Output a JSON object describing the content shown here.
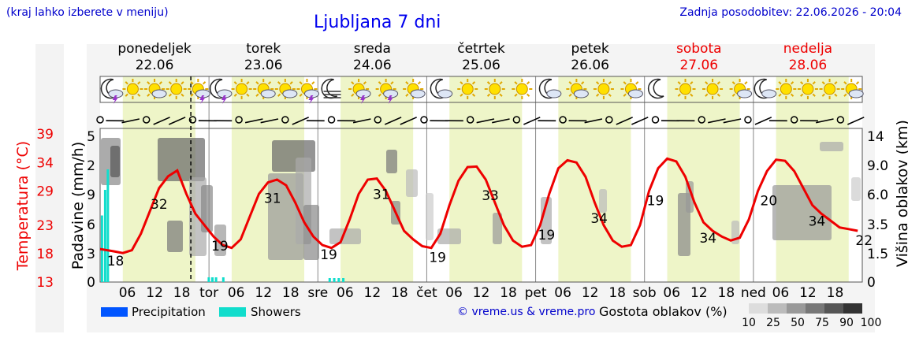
{
  "header": {
    "hint": "(kraj lahko izberete v meniju)",
    "title": "Ljubljana 7 dni",
    "updated": "Zadnja posodobitev: 22.06.2026 - 20:04"
  },
  "days": [
    {
      "name": "ponedeljek",
      "date": "22.06",
      "weekend": false
    },
    {
      "name": "torek",
      "date": "23.06",
      "weekend": false
    },
    {
      "name": "sreda",
      "date": "24.06",
      "weekend": false
    },
    {
      "name": "četrtek",
      "date": "25.06",
      "weekend": false
    },
    {
      "name": "petek",
      "date": "26.06",
      "weekend": false
    },
    {
      "name": "sobota",
      "date": "27.06",
      "weekend": true
    },
    {
      "name": "nedelja",
      "date": "28.06",
      "weekend": true
    }
  ],
  "weather_icons": [
    [
      "moon-thunder-icon",
      "sun-icon",
      "sun-cloud-icon",
      "sun-icon",
      "sun-thunder-icon"
    ],
    [
      "moon-thunder-icon",
      "sun-icon",
      "sun-cloud-icon",
      "sun-cloud-icon",
      "sun-thunder-icon"
    ],
    [
      "moon-fog-icon",
      "sun-thunder-icon",
      "sun-thunder-icon",
      "sun-cloud-icon"
    ],
    [
      "moon-cloud-icon",
      "sun-icon",
      "sun-icon",
      "sun-icon"
    ],
    [
      "moon-cloud-icon",
      "sun-cloud-icon",
      "sun-icon",
      "sun-cloud-icon"
    ],
    [
      "moon-icon",
      "sun-icon",
      "sun-icon",
      "sun-cloud-icon"
    ],
    [
      "moon-cloud-icon",
      "sun-icon",
      "sun-icon",
      "sun-icon",
      "sun-cloud-icon"
    ]
  ],
  "legend": {
    "precipitation": "Precipitation",
    "showers": "Showers",
    "credit": "© vreme.us & vreme.pro",
    "cloud_title": "Gostota oblakov (%)",
    "cloud_levels": [
      "10",
      "25",
      "50",
      "75",
      "90",
      "100"
    ]
  },
  "colors": {
    "temperature": "#ee0000",
    "precipitation": "#0055ff",
    "showers": "#11ddcc",
    "daylight": "#eef5c8",
    "weekend": "#ee0000"
  },
  "chart_data": {
    "type": "line",
    "title": "Ljubljana 7 dni",
    "ylabel_left": "Temperatura (°C)",
    "ylabel_precip": "Padavine (mm/h)",
    "ylabel_right": "Višina oblakov (km)",
    "x_tick_labels": [
      "06",
      "12",
      "18",
      "tor",
      "06",
      "12",
      "18",
      "sre",
      "06",
      "12",
      "18",
      "čet",
      "06",
      "12",
      "18",
      "pet",
      "06",
      "12",
      "18",
      "sob",
      "06",
      "12",
      "18",
      "ned",
      "06",
      "12",
      "18"
    ],
    "temp_ticks": [
      13,
      18,
      23,
      29,
      34,
      39
    ],
    "precip_ticks": [
      "0",
      "3",
      "6",
      "9",
      "2",
      "5"
    ],
    "cloud_height_ticks": [
      0,
      1.5,
      3.5,
      6.0,
      9.0,
      14
    ],
    "temp_range": [
      13,
      40
    ],
    "x_hours_range": [
      0,
      168
    ],
    "temperature_series": {
      "hours": [
        0,
        3,
        5,
        7,
        9,
        11,
        13,
        15,
        17,
        19,
        21,
        23,
        25,
        27,
        29,
        31,
        33,
        35,
        37,
        39,
        41,
        43,
        45,
        47,
        49,
        51,
        53,
        55,
        57,
        59,
        61,
        63,
        65,
        67,
        69,
        71,
        73,
        75,
        77,
        79,
        81,
        83,
        85,
        87,
        89,
        91,
        93,
        95,
        97,
        99,
        101,
        103,
        105,
        107,
        109,
        111,
        113,
        115,
        117,
        119,
        121,
        123,
        125,
        127,
        129,
        131,
        133,
        135,
        137,
        139,
        141,
        143,
        145,
        147,
        149,
        151,
        153,
        155,
        157,
        159,
        161,
        163,
        165,
        167
      ],
      "values": [
        18.8,
        18.4,
        18.1,
        18.6,
        21.5,
        25.5,
        29.5,
        31.6,
        32.6,
        28.5,
        25,
        23,
        21,
        19.5,
        19,
        20.5,
        24.5,
        28.5,
        30.5,
        31,
        30,
        27,
        23.5,
        21,
        19.5,
        19,
        20,
        24,
        28.5,
        31,
        31.2,
        29,
        25.5,
        22,
        20.5,
        19.3,
        19,
        21.5,
        26.5,
        30.8,
        33.2,
        33.3,
        31,
        27,
        23,
        20.3,
        19.2,
        19.5,
        23,
        28.5,
        33,
        34.4,
        34,
        31.5,
        27,
        23,
        20.3,
        19.2,
        19.5,
        23,
        29,
        33,
        34.7,
        34.2,
        31.5,
        27,
        23.5,
        22,
        21,
        20.3,
        20.8,
        24,
        29,
        32.5,
        34.5,
        34.3,
        32.5,
        29.5,
        26.5,
        25,
        23.8,
        22.6,
        22.3,
        22
      ]
    },
    "temperature_labels": [
      {
        "hour": 2,
        "value": "18"
      },
      {
        "hour": 13,
        "value": "32"
      },
      {
        "hour": 25,
        "value": "19"
      },
      {
        "hour": 38,
        "value": "31"
      },
      {
        "hour": 49,
        "value": "19"
      },
      {
        "hour": 62,
        "value": "31"
      },
      {
        "hour": 73,
        "value": "19"
      },
      {
        "hour": 86,
        "value": "33"
      },
      {
        "hour": 97,
        "value": "19"
      },
      {
        "hour": 110,
        "value": "34"
      },
      {
        "hour": 121,
        "value": "19"
      },
      {
        "hour": 134,
        "value": "34"
      },
      {
        "hour": 146,
        "value": "20"
      },
      {
        "hour": 158,
        "value": "34"
      },
      {
        "hour": 167,
        "value": "22"
      }
    ],
    "showers_bars": [
      {
        "hour": 0.5,
        "mm": 6.5
      },
      {
        "hour": 1.2,
        "mm": 9.0
      },
      {
        "hour": 1.8,
        "mm": 11.0
      }
    ],
    "now_hour": 20,
    "cloud_height_km": 14,
    "legend": [
      "Precipitation",
      "Showers"
    ]
  }
}
